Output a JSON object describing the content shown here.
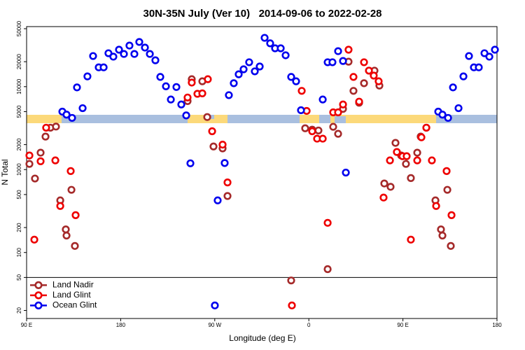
{
  "chart_data": {
    "type": "scatter",
    "title": "30N-35N July (Ver 10)   2014-09-06 to 2022-02-28",
    "xlabel": "Longitude (deg E)",
    "ylabel": "N Total",
    "xlim": [
      90,
      540
    ],
    "xticks": [
      {
        "value": 90,
        "label": "90 E"
      },
      {
        "value": 180,
        "label": "180"
      },
      {
        "value": 270,
        "label": "90 W"
      },
      {
        "value": 360,
        "label": "0"
      },
      {
        "value": 450,
        "label": "90 E"
      },
      {
        "value": 540,
        "label": "180"
      }
    ],
    "ylim": [
      16,
      53000
    ],
    "log_y": true,
    "yticks": [
      20,
      50,
      100,
      200,
      500,
      1000,
      2000,
      5000,
      10000,
      20000,
      50000
    ],
    "hline": 50,
    "legend": "lower left",
    "series": [
      {
        "name": "Land Nadir",
        "color": "#a52a2a",
        "x": [
          92.7,
          98.0,
          103.4,
          108.1,
          112.8,
          118.1,
          122.2,
          127.5,
          128.2,
          132.9,
          136.2,
          244.0,
          248.0,
          258.1,
          262.8,
          268.8,
          277.5,
          282.2,
          343.1,
          356.5,
          363.2,
          369.2,
          378.0,
          383.3,
          388.0,
          392.7,
          398.0,
          402.7,
          408.1,
          412.8,
          417.5,
          422.8,
          427.5,
          432.2,
          438.2,
          442.9,
          448.3,
          452.9,
          457.6,
          463.7,
          467.0,
          472.4,
          481.1,
          486.4,
          487.8,
          492.5,
          495.8
        ],
        "values": [
          1170,
          780,
          1600,
          2500,
          3200,
          3300,
          425,
          190,
          160,
          570,
          120,
          6700,
          12300,
          11600,
          4300,
          1900,
          1800,
          480,
          46,
          3150,
          3030,
          2960,
          63,
          3280,
          2700,
          5400,
          20000,
          8900,
          6400,
          11000,
          15600,
          15600,
          10300,
          680,
          620,
          2100,
          1480,
          1170,
          790,
          1600,
          2500,
          3200,
          425,
          190,
          160,
          570,
          120
        ]
      },
      {
        "name": "Land Glint",
        "color": "#ee0000",
        "x": [
          92.7,
          97.4,
          103.4,
          108.7,
          117.5,
          122.2,
          132.2,
          136.9,
          244.0,
          248.0,
          253.4,
          258.1,
          263.4,
          267.5,
          277.5,
          282.2,
          343.8,
          353.2,
          357.9,
          363.2,
          367.9,
          373.3,
          378.0,
          383.3,
          388.0,
          392.7,
          398.0,
          402.7,
          408.1,
          412.8,
          417.5,
          422.1,
          426.8,
          431.5,
          437.6,
          444.2,
          449.6,
          453.6,
          457.6,
          463.7,
          467.7,
          472.4,
          477.7,
          481.8,
          491.8,
          496.5
        ],
        "values": [
          1480,
          143,
          1260,
          3200,
          1290,
          364,
          960,
          282,
          7400,
          11200,
          8200,
          8300,
          12300,
          2900,
          2000,
          700,
          23,
          8900,
          5100,
          2900,
          2360,
          2360,
          228,
          4900,
          4900,
          6100,
          27900,
          13100,
          6600,
          19700,
          15600,
          13600,
          11600,
          460,
          1290,
          1630,
          1450,
          1450,
          143,
          1290,
          2450,
          3200,
          1290,
          364,
          960,
          282
        ]
      },
      {
        "name": "Ocean Glint",
        "color": "#0000ee",
        "x": [
          124.2,
          128.2,
          133.5,
          138.2,
          143.6,
          148.2,
          153.6,
          159.0,
          163.7,
          168.3,
          173.0,
          178.4,
          183.1,
          188.4,
          193.1,
          197.8,
          203.2,
          207.9,
          213.2,
          217.9,
          223.3,
          228.0,
          233.3,
          238.0,
          242.7,
          246.7,
          270.1,
          272.8,
          279.5,
          283.5,
          288.2,
          292.9,
          297.6,
          302.9,
          308.3,
          313.0,
          317.7,
          323.0,
          327.7,
          333.1,
          337.8,
          343.1,
          347.8,
          352.5,
          373.3,
          378.0,
          382.6,
          388.0,
          392.7,
          395.4,
          483.8,
          487.8,
          493.2,
          497.9,
          503.2,
          507.9,
          513.2,
          517.9,
          522.6,
          528.0,
          532.7,
          538.0
        ],
        "values": [
          5000,
          4600,
          4200,
          9800,
          5500,
          13300,
          23400,
          17100,
          17100,
          25300,
          23000,
          27900,
          24800,
          31300,
          24800,
          34600,
          29600,
          24800,
          20800,
          13100,
          10100,
          7000,
          9900,
          6100,
          4500,
          1190,
          23,
          425,
          1200,
          7900,
          11000,
          14100,
          16200,
          19700,
          15300,
          17500,
          38800,
          33300,
          29000,
          29000,
          23900,
          13100,
          11600,
          5200,
          7000,
          19700,
          19700,
          26800,
          20400,
          920,
          5000,
          4600,
          4200,
          9800,
          5500,
          13300,
          23400,
          17100,
          17100,
          25300,
          23000,
          27900
        ]
      }
    ]
  }
}
